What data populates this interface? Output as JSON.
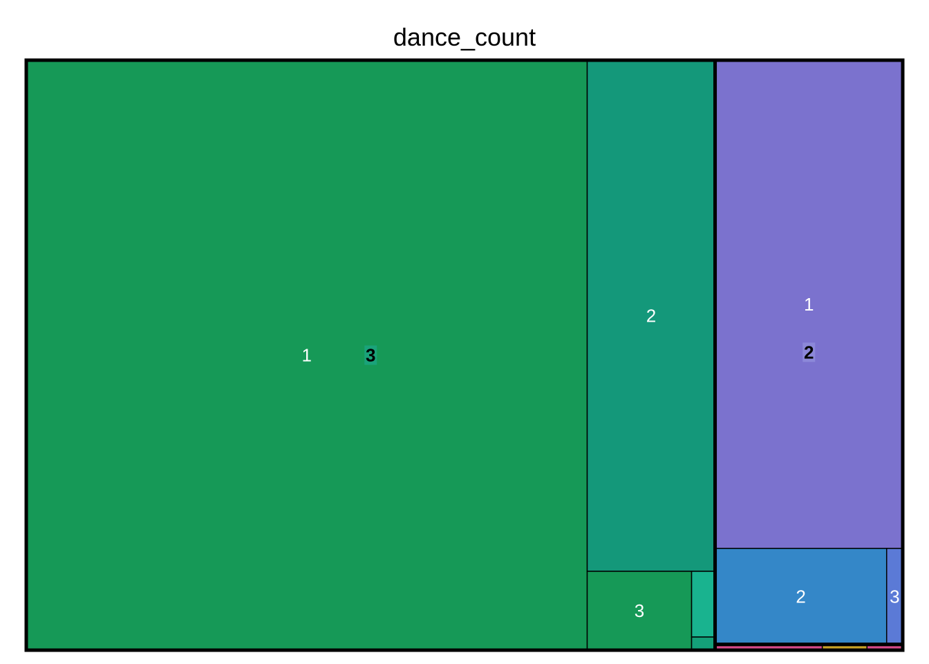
{
  "chart_data": {
    "type": "treemap",
    "title": "dance_count",
    "groups": [
      {
        "name": "3",
        "color": "#1aa37a",
        "tiles": [
          {
            "name": "1",
            "value": 64.3,
            "color": "#169957"
          },
          {
            "name": "2",
            "value": 12.7,
            "color": "#14987a"
          },
          {
            "name": "3",
            "value": 1.6,
            "color": "#169957"
          },
          {
            "name": "",
            "value": 0.3,
            "color": "#19b38f"
          },
          {
            "name": "",
            "value": 0.06,
            "color": "#14a079"
          }
        ]
      },
      {
        "name": "2",
        "color": "#8c88d9",
        "tiles": [
          {
            "name": "1",
            "value": 17.8,
            "color": "#7b72ce"
          },
          {
            "name": "2",
            "value": 3.2,
            "color": "#3487c8"
          },
          {
            "name": "3",
            "value": 0.3,
            "color": "#5b7ad6"
          }
        ]
      },
      {
        "name": "",
        "color": "#cccccc",
        "tiles": [
          {
            "name": "",
            "value": 0.12,
            "color": "#d64a8a"
          },
          {
            "name": "",
            "value": 0.04,
            "color": "#d64a8a"
          },
          {
            "name": "",
            "value": 0.05,
            "color": "#c9a227"
          }
        ]
      }
    ]
  }
}
